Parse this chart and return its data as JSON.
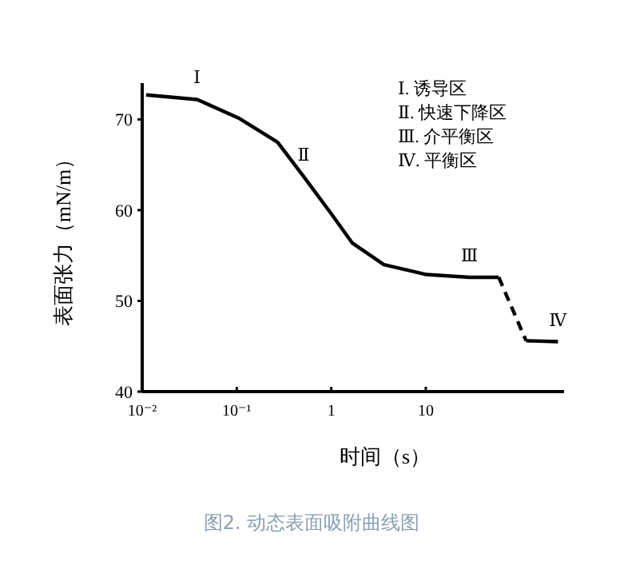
{
  "chart_data": {
    "type": "line",
    "title": "图2. 动态表面吸附曲线图",
    "xlabel": "时间（s）",
    "ylabel": "表面张力（mN/m）",
    "log": "x",
    "xlim": [
      0.01,
      290
    ],
    "ylim": [
      40,
      74
    ],
    "xticks": [
      {
        "value": 0.01,
        "label": "10⁻²"
      },
      {
        "value": 0.1,
        "label": "10⁻¹"
      },
      1,
      10
    ],
    "yticks": [
      40,
      50,
      60,
      70
    ],
    "grid": false,
    "series": [
      {
        "color": "#000000",
        "line_style": "solid",
        "x": [
          0.011,
          0.038,
          0.107,
          0.27,
          0.51,
          1.0,
          1.66,
          3.6,
          10.2,
          29,
          59
        ],
        "values": [
          72.7,
          72.2,
          70.1,
          67.5,
          63.7,
          59.6,
          56.4,
          54.0,
          52.9,
          52.6,
          52.6
        ]
      },
      {
        "color": "#000000",
        "line_style": "dashed",
        "x": [
          59,
          115
        ],
        "values": [
          52.6,
          45.6
        ]
      },
      {
        "color": "#000000",
        "line_style": "solid",
        "x": [
          115,
          250
        ],
        "values": [
          45.6,
          45.5
        ]
      }
    ],
    "annotations": [
      {
        "text": "Ⅰ",
        "x": 0.038,
        "y": 72.2
      },
      {
        "text": "Ⅱ",
        "x": 0.51,
        "y": 63.7
      },
      {
        "text": "Ⅲ",
        "x": 29,
        "y": 52.6
      },
      {
        "text": "Ⅳ",
        "x": 250,
        "y": 45.5
      },
      "Ⅰ. 诱导区",
      "Ⅱ. 快速下降区",
      "Ⅲ. 介平衡区",
      "Ⅳ. 平衡区"
    ]
  }
}
